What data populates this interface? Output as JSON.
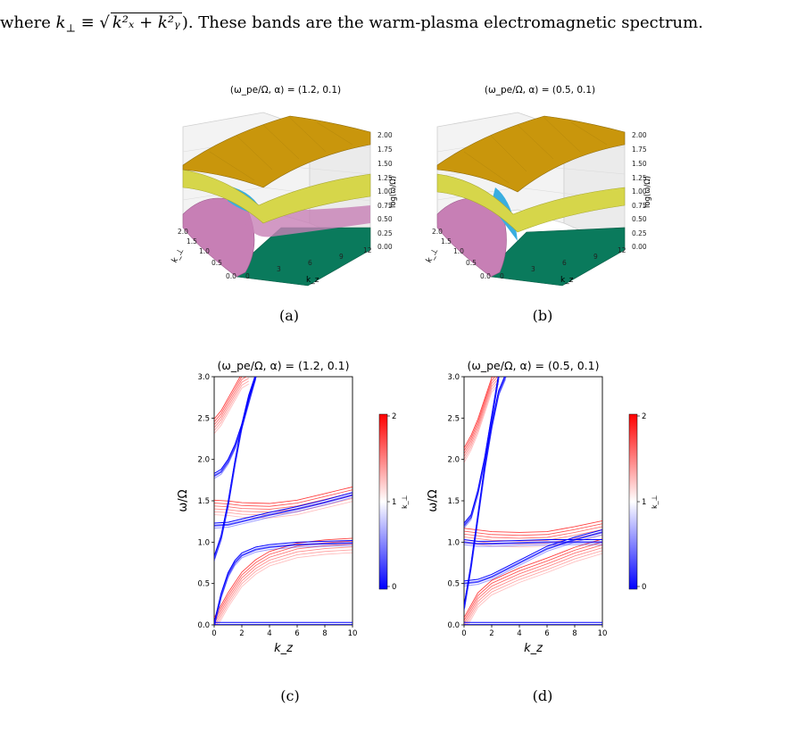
{
  "intro": {
    "prefix": "where ",
    "kperp": "k",
    "kperp_sub": "⊥",
    "equiv": " ≡ ",
    "sqrt_body": "k²ₓ + k²ᵧ",
    "suffix": "). These bands are the warm-plasma electromagnetic spectrum."
  },
  "figures": {
    "a": {
      "title": "(ω_pe/Ω,  α) = (1.2, 0.1)",
      "caption": "(a)"
    },
    "b": {
      "title": "(ω_pe/Ω,  α) = (0.5, 0.1)",
      "caption": "(b)"
    },
    "c": {
      "title": "(ω_pe/Ω,  α) = (1.2, 0.1)",
      "caption": "(c)"
    },
    "d": {
      "title": "(ω_pe/Ω,  α) = (0.5, 0.1)",
      "caption": "(d)"
    }
  },
  "surface_axes": {
    "z_ticks": [
      "2.00",
      "1.75",
      "1.50",
      "1.25",
      "1.00",
      "0.75",
      "0.50",
      "0.25",
      "0.00"
    ],
    "z_label": "log(ω/Ω)",
    "kz_ticks": [
      "0",
      "3",
      "6",
      "9",
      "12"
    ],
    "kz_label": "k_z",
    "kperp_ticks": [
      "2.0",
      "1.5",
      "1.0",
      "0.5",
      "0.0"
    ],
    "kperp_label": "k_⊥"
  },
  "colorbar": {
    "max": "2",
    "mid": "1",
    "min": "0",
    "label": "k_⊥"
  },
  "colors": {
    "low": "#0000ff",
    "mid": "#ffffff",
    "high": "#ff0000",
    "gold": "#c9960c",
    "yellow": "#d6d64a",
    "cyan": "#3aaee0",
    "pink": "#c77fb5",
    "green": "#0a7a5c"
  },
  "chart_data": [
    {
      "type": "line",
      "title": "(ω_pe/Ω,  α) = (1.2, 0.1)",
      "xlabel": "k_z",
      "ylabel": "ω/Ω",
      "xlim": [
        0,
        10
      ],
      "ylim": [
        0,
        3
      ],
      "x_ticks": [
        "0",
        "2",
        "4",
        "6",
        "8",
        "10"
      ],
      "y_ticks": [
        "0.0",
        "0.5",
        "1.0",
        "1.5",
        "2.0",
        "2.5",
        "3.0"
      ],
      "colorbar": {
        "label": "k_⊥",
        "range": [
          0,
          2
        ]
      },
      "series_low_kperp": [
        {
          "x": [
            0,
            0.5,
            1,
            1.5,
            2,
            2.5,
            3
          ],
          "y": [
            0.8,
            1.05,
            1.45,
            1.95,
            2.4,
            2.75,
            3.0
          ]
        },
        {
          "x": [
            0,
            0.5,
            1,
            1.5,
            2,
            2.5,
            3
          ],
          "y": [
            1.8,
            1.85,
            1.97,
            2.15,
            2.4,
            2.7,
            3.0
          ]
        },
        {
          "x": [
            0,
            1,
            2,
            4,
            6,
            8,
            10
          ],
          "y": [
            1.2,
            1.21,
            1.25,
            1.33,
            1.4,
            1.48,
            1.57
          ]
        },
        {
          "x": [
            0,
            0.5,
            1,
            1.5,
            2,
            3,
            4,
            6,
            8,
            10
          ],
          "y": [
            0,
            0.35,
            0.6,
            0.75,
            0.84,
            0.91,
            0.94,
            0.97,
            0.98,
            0.99
          ]
        },
        {
          "x": [
            0,
            10
          ],
          "y": [
            0,
            0
          ]
        }
      ],
      "series_high_kperp": [
        {
          "x": [
            0,
            0.5,
            1,
            1.5,
            2,
            2.5
          ],
          "y": [
            2.4,
            2.5,
            2.65,
            2.8,
            2.95,
            3.0
          ]
        },
        {
          "x": [
            0,
            1,
            2,
            4,
            6,
            8,
            10
          ],
          "y": [
            1.42,
            1.41,
            1.39,
            1.38,
            1.42,
            1.5,
            1.58
          ]
        },
        {
          "x": [
            0,
            1,
            2,
            3,
            4,
            6,
            8,
            10
          ],
          "y": [
            0,
            0.3,
            0.55,
            0.7,
            0.8,
            0.9,
            0.94,
            0.96
          ]
        }
      ]
    },
    {
      "type": "line",
      "title": "(ω_pe/Ω,  α) = (0.5, 0.1)",
      "xlabel": "k_z",
      "ylabel": "ω/Ω",
      "xlim": [
        0,
        10
      ],
      "ylim": [
        0,
        3
      ],
      "x_ticks": [
        "0",
        "2",
        "4",
        "6",
        "8",
        "10"
      ],
      "y_ticks": [
        "0.0",
        "0.5",
        "1.0",
        "1.5",
        "2.0",
        "2.5",
        "3.0"
      ],
      "colorbar": {
        "label": "k_⊥",
        "range": [
          0,
          2
        ]
      },
      "series_low_kperp": [
        {
          "x": [
            0,
            0.5,
            1,
            1.5,
            2,
            2.5,
            3
          ],
          "y": [
            0.2,
            0.7,
            1.3,
            1.9,
            2.4,
            2.8,
            3.0
          ]
        },
        {
          "x": [
            0,
            0.5,
            1,
            1.5,
            2,
            2.5
          ],
          "y": [
            1.2,
            1.3,
            1.6,
            2.0,
            2.5,
            3.0
          ]
        },
        {
          "x": [
            0,
            1,
            2,
            4,
            6,
            8,
            10
          ],
          "y": [
            0.5,
            0.52,
            0.58,
            0.75,
            0.92,
            1.03,
            1.12
          ]
        },
        {
          "x": [
            0,
            1,
            2,
            4,
            6,
            8,
            10
          ],
          "y": [
            1.0,
            0.98,
            0.98,
            0.99,
            1.0,
            1.0,
            1.0
          ]
        },
        {
          "x": [
            0,
            10
          ],
          "y": [
            0,
            0
          ]
        }
      ],
      "series_high_kperp": [
        {
          "x": [
            0,
            0.5,
            1,
            1.5,
            2,
            2.5
          ],
          "y": [
            2.05,
            2.2,
            2.4,
            2.65,
            2.9,
            3.0
          ]
        },
        {
          "x": [
            0,
            1,
            2,
            4,
            6,
            8,
            10
          ],
          "y": [
            1.08,
            1.06,
            1.04,
            1.03,
            1.04,
            1.1,
            1.17
          ]
        },
        {
          "x": [
            0,
            1,
            2,
            4,
            6,
            8,
            10
          ],
          "y": [
            0,
            0.3,
            0.45,
            0.6,
            0.72,
            0.85,
            0.95
          ]
        }
      ]
    }
  ]
}
